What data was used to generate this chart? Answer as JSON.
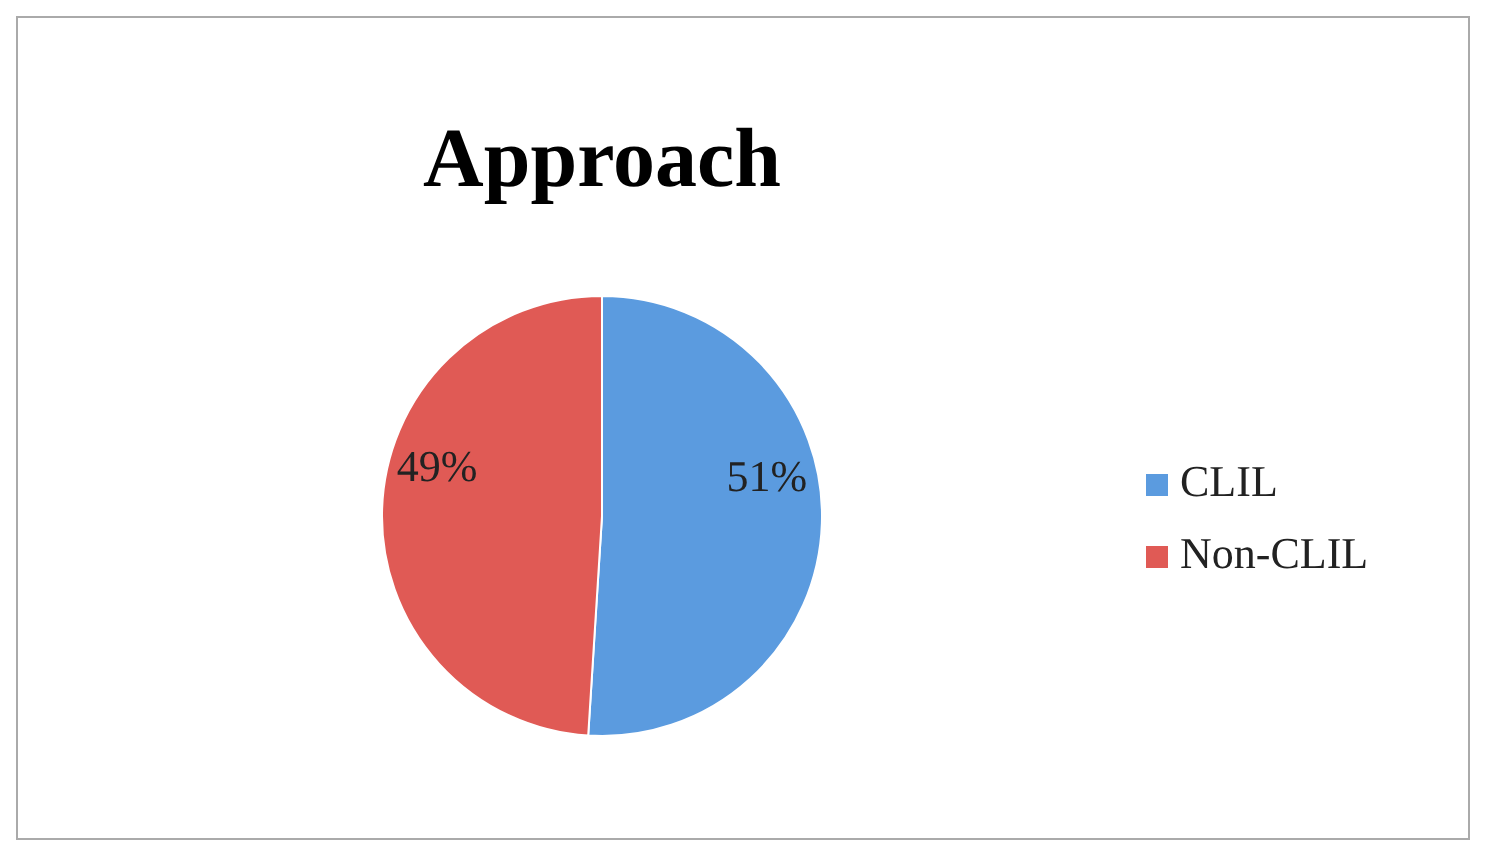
{
  "chart_data": {
    "type": "pie",
    "title": "Approach",
    "categories": [
      "CLIL",
      "Non-CLIL"
    ],
    "values": [
      51,
      49
    ],
    "colors": [
      "#5b9bdf",
      "#e05a55"
    ],
    "value_labels": [
      "51%",
      "49%"
    ],
    "legend": "right"
  }
}
